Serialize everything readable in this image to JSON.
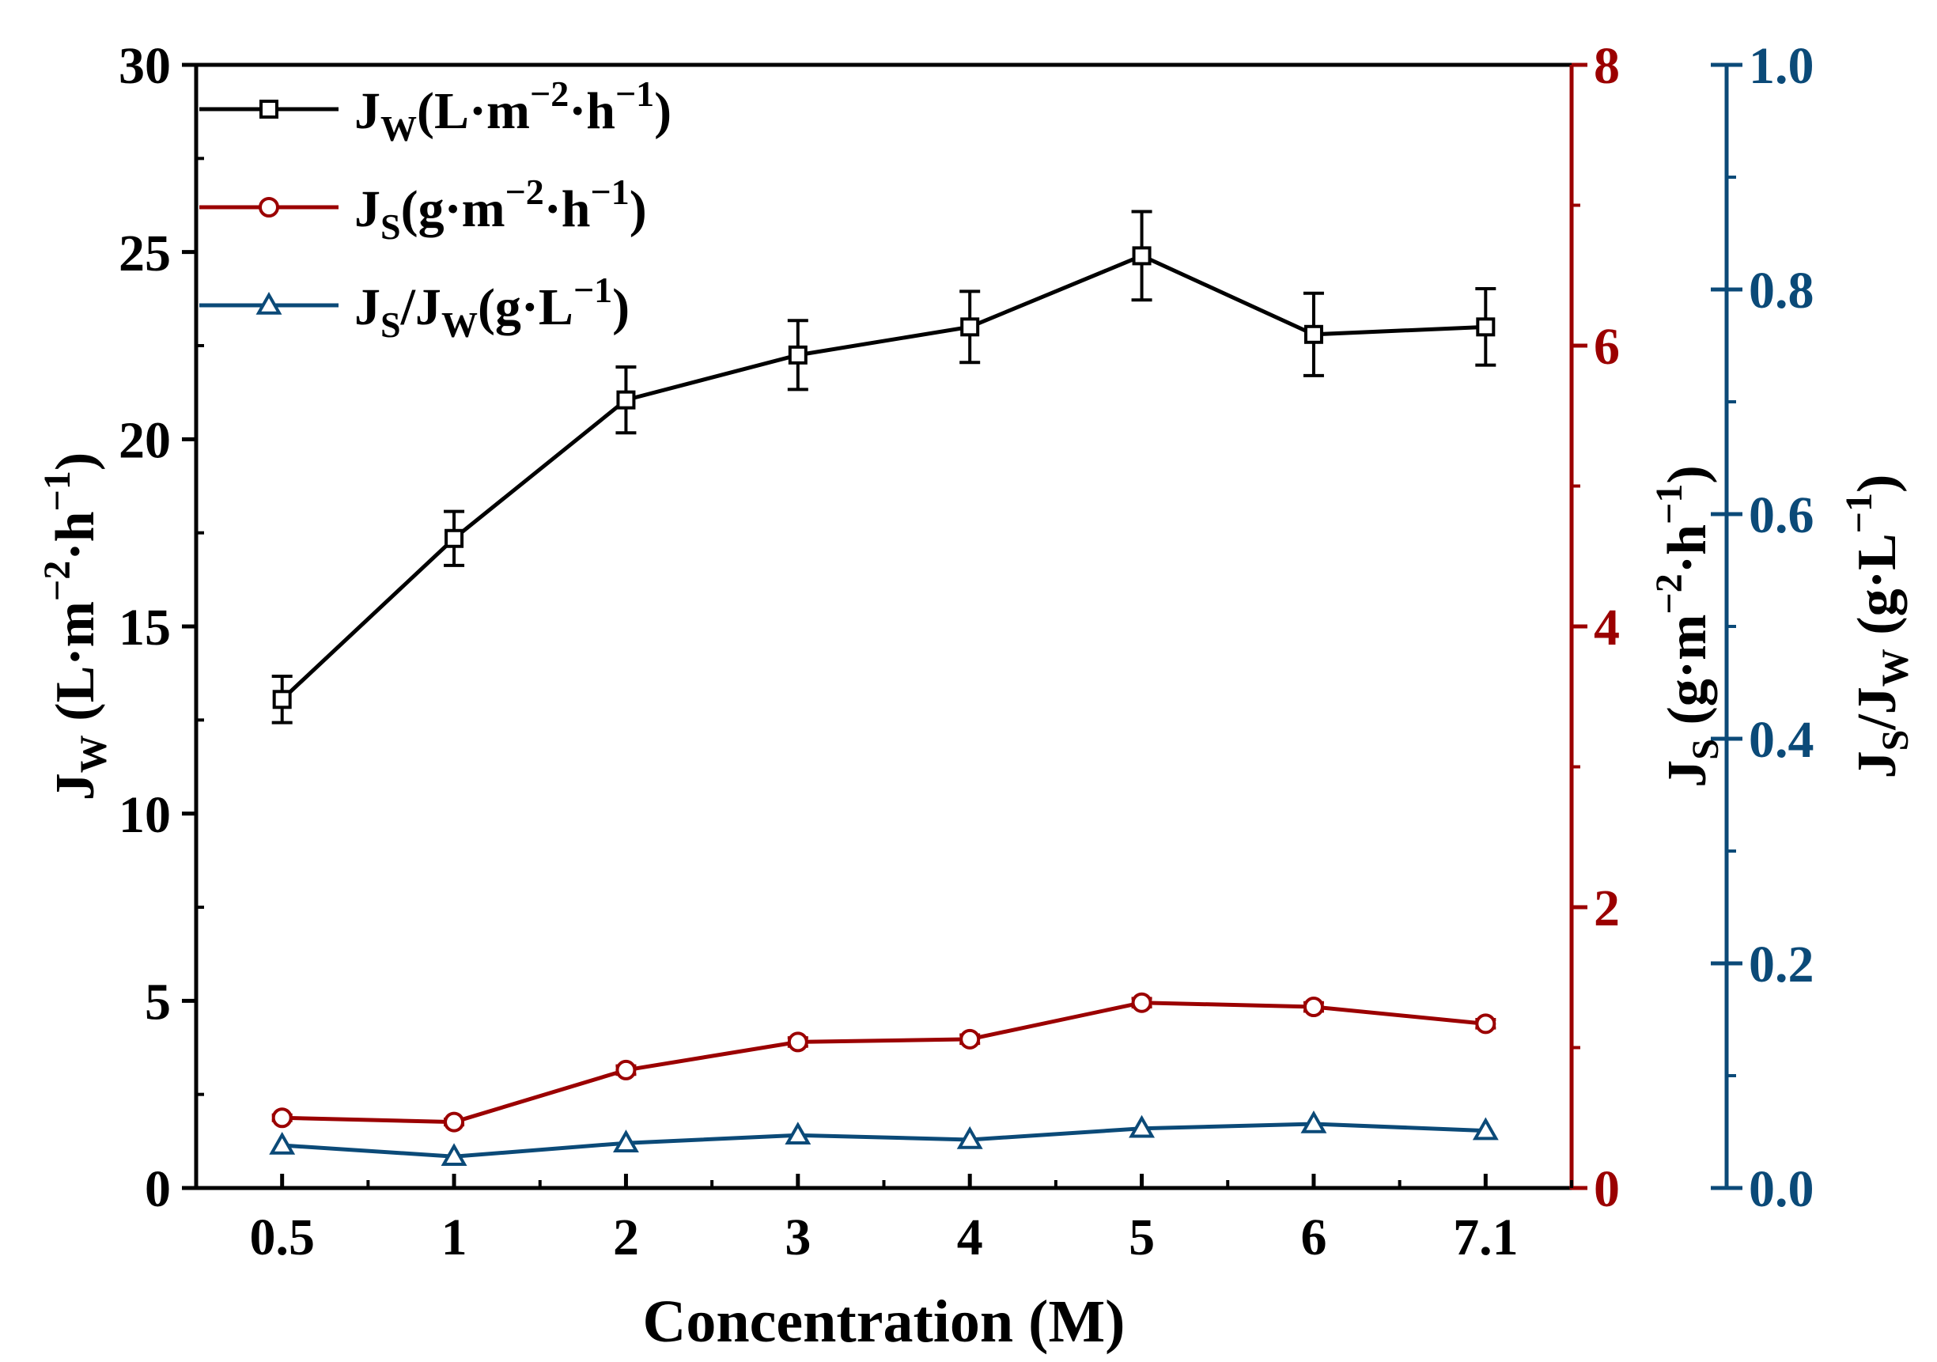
{
  "chart_data": {
    "type": "line",
    "xlabel": "Concentration (M)",
    "categories": [
      "0.5",
      "1",
      "2",
      "3",
      "4",
      "5",
      "6",
      "7.1"
    ],
    "axes": {
      "left": {
        "label_main": "J",
        "label_sub": "W",
        "label_rest": " (L·m",
        "label_sup1": "−2",
        "label_mid": "·h",
        "label_sup2": "−1",
        "label_end": ")",
        "ylim": [
          0,
          30
        ],
        "major_ticks": [
          0,
          5,
          10,
          15,
          20,
          25,
          30
        ],
        "color": "#000000"
      },
      "right1": {
        "label_main": "J",
        "label_sub": "S",
        "label_rest": " (g·m",
        "label_sup1": "−2",
        "label_mid": "·h",
        "label_sup2": "−1",
        "label_end": ")",
        "ylim": [
          0,
          8
        ],
        "major_ticks": [
          0,
          2,
          4,
          6,
          8
        ],
        "color": "#9b0000"
      },
      "right2": {
        "label_main": "J",
        "label_sub": "S",
        "label_slash": "/J",
        "label_sub2": "W",
        "label_rest": " (g·L",
        "label_sup1": "−1",
        "label_end": ")",
        "ylim": [
          0,
          1.0
        ],
        "major_ticks": [
          "0.0",
          "0.2",
          "0.4",
          "0.6",
          "0.8",
          "1.0"
        ],
        "color": "#0b4a78"
      }
    },
    "series": [
      {
        "name": "Jw",
        "legend_main": "J",
        "legend_sub": "W",
        "legend_rest": "(L·m",
        "legend_sup1": "−2",
        "legend_mid": "·h",
        "legend_sup2": "−1",
        "legend_end": ")",
        "axis": "left",
        "marker": "square",
        "color": "#000000",
        "values": [
          13.05,
          17.35,
          21.05,
          22.25,
          23.0,
          24.9,
          22.8,
          23.0
        ],
        "errors": [
          0.62,
          0.72,
          0.88,
          0.92,
          0.95,
          1.18,
          1.1,
          1.02
        ]
      },
      {
        "name": "Js",
        "legend_main": "J",
        "legend_sub": "S",
        "legend_rest": "(g·m",
        "legend_sup1": "−2",
        "legend_mid": "·h",
        "legend_sup2": "−1",
        "legend_end": ")",
        "axis": "right1",
        "marker": "circle",
        "color": "#9b0000",
        "values": [
          0.5,
          0.47,
          0.84,
          1.04,
          1.06,
          1.32,
          1.29,
          1.17
        ],
        "errors": [
          0.02,
          0.02,
          0.03,
          0.03,
          0.03,
          0.03,
          0.03,
          0.03
        ]
      },
      {
        "name": "Js/Jw",
        "legend_main": "J",
        "legend_sub": "S",
        "legend_slash": "/J",
        "legend_sub2": "W",
        "legend_rest": "(g·L",
        "legend_sup1": "−1",
        "legend_end": ")",
        "axis": "right2",
        "marker": "triangle",
        "color": "#0b4a78",
        "values": [
          0.038,
          0.028,
          0.04,
          0.047,
          0.043,
          0.053,
          0.057,
          0.051
        ]
      }
    ]
  }
}
